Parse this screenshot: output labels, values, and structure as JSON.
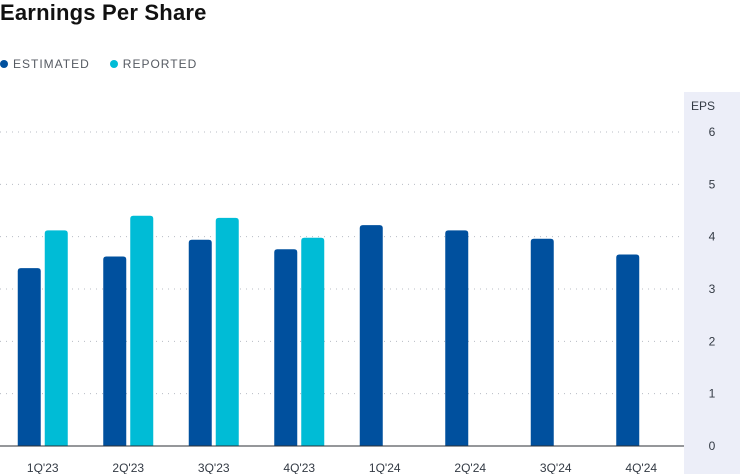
{
  "title": "Earnings Per Share",
  "legend": {
    "estimated": "ESTIMATED",
    "reported": "REPORTED"
  },
  "colors": {
    "estimated": "#00509e",
    "reported": "#00bcd6",
    "axis_band": "#eceef8"
  },
  "chart_data": {
    "type": "bar",
    "title": "Earnings Per Share",
    "ylabel": "EPS",
    "xlabel": "",
    "ylim": [
      0,
      6
    ],
    "yticks": [
      0,
      1,
      2,
      3,
      4,
      5,
      6
    ],
    "y_axis_position": "right",
    "grid": "dotted-horizontal",
    "legend_position": "top-left",
    "categories": [
      "1Q'23",
      "2Q'23",
      "3Q'23",
      "4Q'23",
      "1Q'24",
      "2Q'24",
      "3Q'24",
      "4Q'24"
    ],
    "series": [
      {
        "name": "ESTIMATED",
        "values": [
          3.4,
          3.62,
          3.94,
          3.76,
          4.22,
          4.12,
          3.96,
          3.66
        ]
      },
      {
        "name": "REPORTED",
        "values": [
          4.12,
          4.4,
          4.36,
          3.98,
          null,
          null,
          null,
          null
        ]
      }
    ]
  }
}
